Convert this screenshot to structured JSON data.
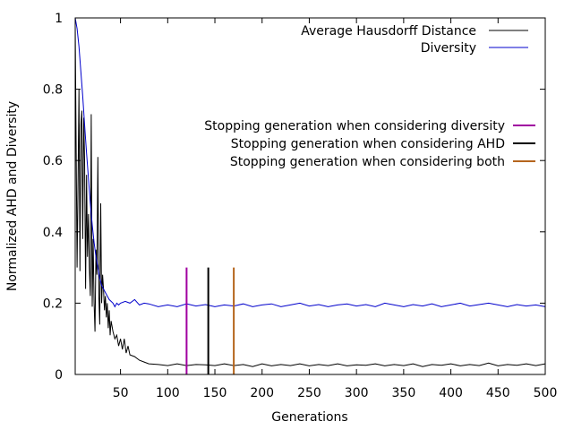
{
  "chart_data": {
    "type": "line",
    "title": "",
    "xlabel": "Generations",
    "ylabel": "Normalized AHD and Diversity",
    "xlim": [
      2,
      500
    ],
    "ylim": [
      0,
      1
    ],
    "x_ticks": [
      50,
      100,
      150,
      200,
      250,
      300,
      350,
      400,
      450,
      500
    ],
    "x_tick_labels": [
      "50",
      "100",
      "150",
      "200",
      "250",
      "300",
      "350",
      "400",
      "450",
      "500"
    ],
    "y_ticks": [
      0,
      0.2,
      0.4,
      0.6,
      0.8,
      1
    ],
    "y_tick_labels": [
      "0",
      "0.2",
      "0.4",
      "0.6",
      "0.8",
      "1"
    ],
    "grid": false,
    "legend_position": "top-right",
    "series": [
      {
        "name": "Average Hausdorff Distance",
        "color": "#000000",
        "x": [
          2,
          3,
          4,
          5,
          6,
          7,
          8,
          9,
          10,
          11,
          12,
          13,
          14,
          15,
          16,
          17,
          18,
          19,
          20,
          21,
          22,
          23,
          24,
          25,
          26,
          27,
          28,
          29,
          30,
          31,
          32,
          33,
          34,
          35,
          36,
          37,
          38,
          39,
          40,
          42,
          44,
          46,
          48,
          50,
          52,
          54,
          56,
          58,
          60,
          65,
          70,
          75,
          80,
          90,
          100,
          110,
          120,
          130,
          140,
          150,
          160,
          170,
          180,
          190,
          200,
          210,
          220,
          230,
          240,
          250,
          260,
          270,
          280,
          290,
          300,
          310,
          320,
          330,
          340,
          350,
          360,
          370,
          380,
          390,
          400,
          410,
          420,
          430,
          440,
          450,
          460,
          470,
          480,
          490,
          500
        ],
        "y": [
          0.98,
          0.62,
          0.3,
          0.55,
          0.8,
          0.29,
          0.7,
          0.74,
          0.38,
          0.72,
          0.6,
          0.24,
          0.56,
          0.33,
          0.45,
          0.3,
          0.22,
          0.73,
          0.19,
          0.38,
          0.2,
          0.12,
          0.35,
          0.28,
          0.61,
          0.22,
          0.14,
          0.48,
          0.2,
          0.28,
          0.24,
          0.18,
          0.22,
          0.16,
          0.2,
          0.13,
          0.18,
          0.11,
          0.15,
          0.12,
          0.1,
          0.11,
          0.08,
          0.1,
          0.07,
          0.1,
          0.06,
          0.08,
          0.055,
          0.05,
          0.04,
          0.035,
          0.03,
          0.028,
          0.025,
          0.03,
          0.025,
          0.028,
          0.027,
          0.025,
          0.03,
          0.025,
          0.028,
          0.022,
          0.03,
          0.024,
          0.028,
          0.025,
          0.03,
          0.024,
          0.028,
          0.025,
          0.03,
          0.024,
          0.027,
          0.026,
          0.03,
          0.024,
          0.028,
          0.025,
          0.03,
          0.022,
          0.028,
          0.026,
          0.03,
          0.024,
          0.028,
          0.025,
          0.032,
          0.024,
          0.028,
          0.026,
          0.03,
          0.025,
          0.03
        ]
      },
      {
        "name": "Diversity",
        "color": "#0000cc",
        "x": [
          2,
          4,
          6,
          8,
          10,
          12,
          14,
          16,
          18,
          20,
          22,
          24,
          26,
          28,
          30,
          32,
          34,
          36,
          38,
          40,
          42,
          44,
          46,
          48,
          50,
          55,
          60,
          65,
          70,
          75,
          80,
          90,
          100,
          110,
          120,
          130,
          140,
          150,
          160,
          170,
          180,
          190,
          200,
          210,
          220,
          230,
          240,
          250,
          260,
          270,
          280,
          290,
          300,
          310,
          320,
          330,
          340,
          350,
          360,
          370,
          380,
          390,
          400,
          410,
          420,
          430,
          440,
          450,
          460,
          470,
          480,
          490,
          500
        ],
        "y": [
          1.0,
          0.97,
          0.92,
          0.85,
          0.78,
          0.7,
          0.62,
          0.55,
          0.48,
          0.42,
          0.37,
          0.33,
          0.3,
          0.27,
          0.25,
          0.24,
          0.23,
          0.22,
          0.21,
          0.205,
          0.2,
          0.19,
          0.2,
          0.195,
          0.2,
          0.205,
          0.2,
          0.21,
          0.195,
          0.2,
          0.198,
          0.19,
          0.195,
          0.19,
          0.198,
          0.192,
          0.196,
          0.19,
          0.195,
          0.192,
          0.198,
          0.19,
          0.195,
          0.198,
          0.19,
          0.195,
          0.2,
          0.192,
          0.196,
          0.19,
          0.195,
          0.198,
          0.192,
          0.196,
          0.19,
          0.2,
          0.195,
          0.19,
          0.196,
          0.192,
          0.198,
          0.19,
          0.195,
          0.2,
          0.192,
          0.196,
          0.2,
          0.195,
          0.19,
          0.196,
          0.192,
          0.195,
          0.19
        ]
      }
    ],
    "markers": [
      {
        "name": "Stopping generation when considering diversity",
        "x": 120,
        "y_top": 0.3,
        "color": "#a000a0"
      },
      {
        "name": "Stopping generation when considering AHD",
        "x": 143,
        "y_top": 0.3,
        "color": "#000000"
      },
      {
        "name": "Stopping generation when considering both",
        "x": 170,
        "y_top": 0.3,
        "color": "#b5651d"
      }
    ]
  }
}
